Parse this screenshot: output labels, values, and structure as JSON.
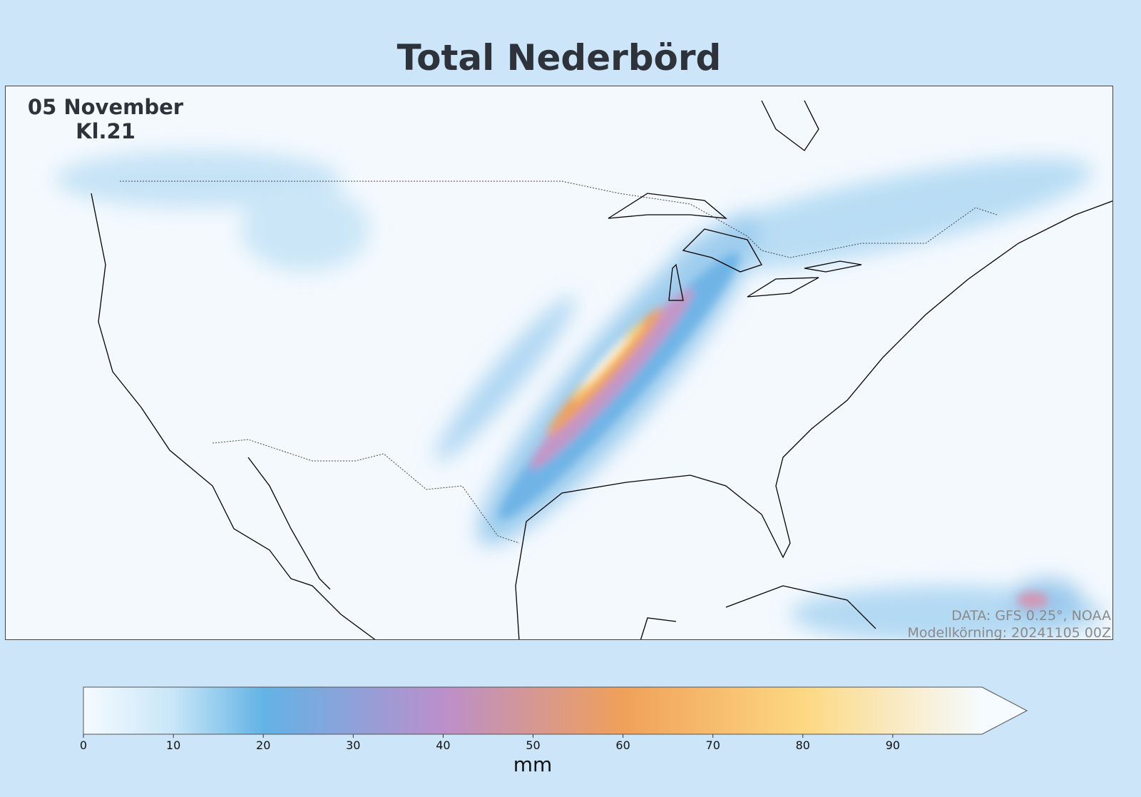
{
  "title": "Total Nederbörd",
  "map": {
    "date_line1": "05 November",
    "date_line2": "Kl.21",
    "credit_data": "DATA: GFS 0.25°, NOAA",
    "credit_run": "Modellkörning: 20241105 00Z",
    "variable": "total precipitation",
    "region": "North America"
  },
  "colorbar": {
    "unit": "mm",
    "range": [
      0,
      100
    ],
    "extend": "max",
    "ticks": [
      "0",
      "10",
      "20",
      "30",
      "40",
      "50",
      "60",
      "70",
      "80",
      "90"
    ],
    "stops": [
      {
        "value": 0,
        "color": "#f5fbff"
      },
      {
        "value": 10,
        "color": "#c8e6f7"
      },
      {
        "value": 20,
        "color": "#63b3e6"
      },
      {
        "value": 40,
        "color": "#bb8fcb"
      },
      {
        "value": 60,
        "color": "#f0a05a"
      },
      {
        "value": 80,
        "color": "#fdd882"
      },
      {
        "value": 100,
        "color": "#f5fbff"
      }
    ]
  }
}
